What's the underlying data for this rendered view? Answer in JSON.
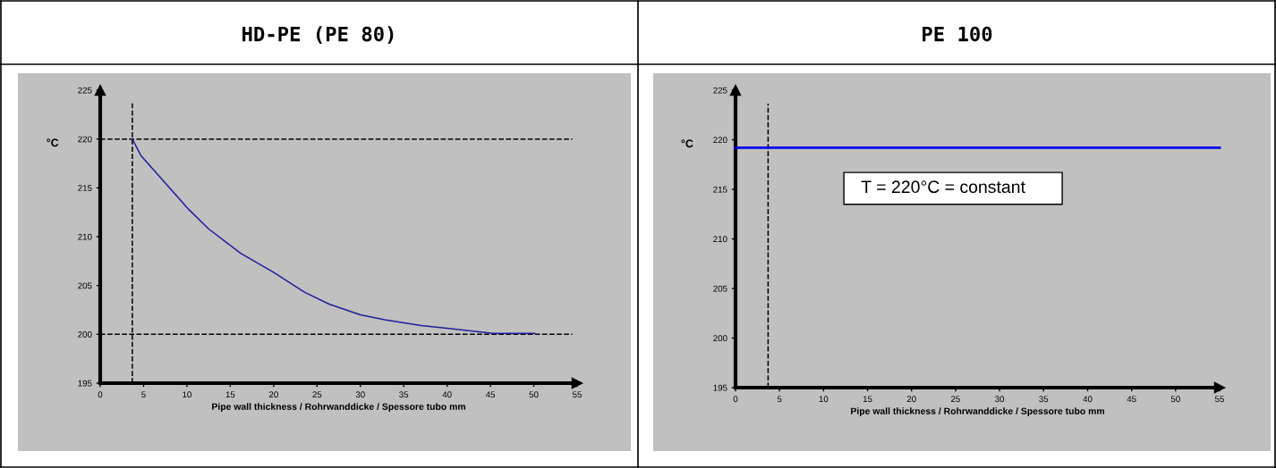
{
  "chart_data": [
    {
      "type": "line",
      "title": "HD-PE (PE 80)",
      "xlabel": "Pipe wall thickness / Rohrwanddicke / Spessore tubo mm",
      "ylabel": "°C",
      "x": [
        3.7,
        4.7,
        7.9,
        10.2,
        12.5,
        16.2,
        19.9,
        23.6,
        26.4,
        30.0,
        32.8,
        37.0,
        40.2,
        45.3,
        50.1
      ],
      "series": [
        {
          "color": "#1f1f9a",
          "values": [
            220.0,
            218.3,
            215.1,
            212.8,
            210.8,
            208.3,
            206.4,
            204.3,
            203.1,
            202.0,
            201.5,
            200.9,
            200.6,
            200.1,
            200.1
          ]
        }
      ],
      "xlim": [
        0,
        55
      ],
      "ylim": [
        195,
        225
      ],
      "xticks": [
        0,
        5,
        10,
        15,
        20,
        25,
        30,
        35,
        40,
        45,
        50,
        55
      ],
      "yticks": [
        195,
        200,
        205,
        210,
        215,
        220,
        225
      ],
      "ref_lines": [
        {
          "axis": "x",
          "value": 3.7,
          "color": "#000000",
          "line_style": "dashed"
        },
        {
          "axis": "y",
          "value": 220,
          "color": "#000000",
          "line_style": "dashed"
        },
        {
          "axis": "y",
          "value": 200,
          "color": "#000000",
          "line_style": "dashed"
        }
      ],
      "grid": false,
      "legend": false
    },
    {
      "type": "line",
      "title": "PE 100",
      "xlabel": "Pipe wall thickness / Rohrwanddicke / Spessore tubo mm",
      "ylabel": "°C",
      "x": [
        0,
        55
      ],
      "series": [
        {
          "color": "#0000ee",
          "values": [
            219.2,
            219.2
          ]
        }
      ],
      "xlim": [
        0,
        55
      ],
      "ylim": [
        195,
        225
      ],
      "xticks": [
        0,
        5,
        10,
        15,
        20,
        25,
        30,
        35,
        40,
        45,
        50,
        55
      ],
      "yticks": [
        195,
        200,
        205,
        210,
        215,
        220,
        225
      ],
      "ref_lines": [
        {
          "axis": "x",
          "value": 3.7,
          "color": "#000000",
          "line_style": "dashed"
        }
      ],
      "annotations": [
        "T = 220°C = constant"
      ],
      "grid": false,
      "legend": false
    }
  ]
}
